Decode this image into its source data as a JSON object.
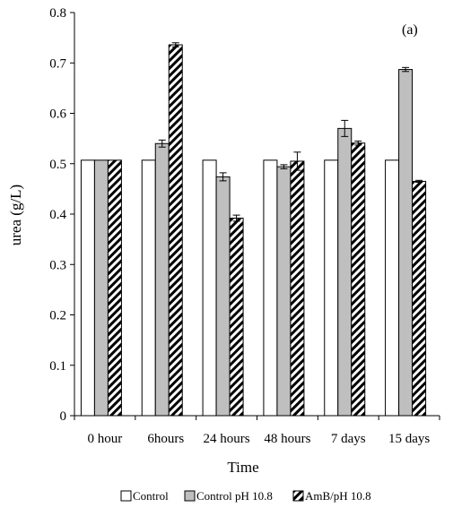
{
  "chart_data": {
    "type": "bar",
    "title": "",
    "panel_label": "(a)",
    "xlabel": "Time",
    "ylabel": "urea (g/L)",
    "ylim": [
      0,
      0.8
    ],
    "yticks": [
      "0",
      "0.1",
      "0.2",
      "0.3",
      "0.4",
      "0.5",
      "0.6",
      "0.7",
      "0.8"
    ],
    "categories": [
      "0 hour",
      "6hours",
      "24 hours",
      "48 hours",
      "7 days",
      "15 days"
    ],
    "grid": false,
    "legend_position": "bottom",
    "series": [
      {
        "name": "Control",
        "fill": "#ffffff",
        "pattern": "solid",
        "values": [
          0.507,
          0.507,
          0.507,
          0.507,
          0.507,
          0.507
        ],
        "errors": [
          0,
          0,
          0,
          0,
          0,
          0
        ]
      },
      {
        "name": "Control pH 10.8",
        "fill": "#bfbfbf",
        "pattern": "solid",
        "values": [
          0.507,
          0.54,
          0.474,
          0.494,
          0.57,
          0.687
        ],
        "errors": [
          0,
          0.007,
          0.008,
          0.004,
          0.016,
          0.004
        ]
      },
      {
        "name": "AmB/pH 10.8",
        "fill": "#ffffff",
        "pattern": "diagonal-hatch",
        "values": [
          0.507,
          0.736,
          0.392,
          0.505,
          0.541,
          0.465
        ],
        "errors": [
          0,
          0.004,
          0.006,
          0.018,
          0.004,
          0.002
        ]
      }
    ]
  }
}
